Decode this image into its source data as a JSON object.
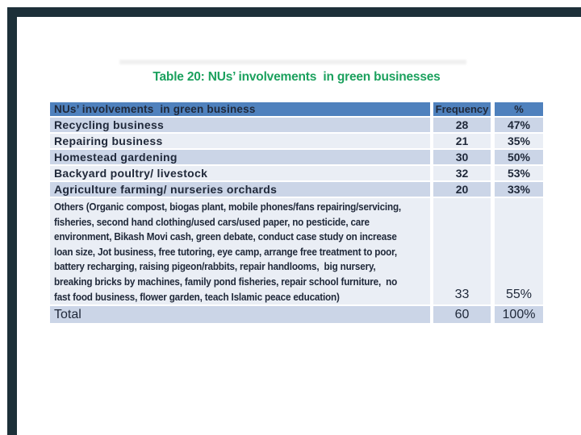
{
  "colors": {
    "frame_dark": "#1d3039",
    "title_green": "#1ca15e",
    "header_bg": "#4f81bd",
    "header_text": "#ffffff",
    "row_a": "#cbd5e7",
    "row_b": "#eaeef5",
    "text_dark": "#20293a"
  },
  "title": {
    "text": "Table 20: NUs’ involvements  in green businesses"
  },
  "table": {
    "header": {
      "col1": "NUs’ involvements  in green business",
      "col2": "Frequency",
      "col3": "%"
    },
    "rows": [
      {
        "label": "Recycling business",
        "frequency": "28",
        "percent": "47%",
        "shade": "a"
      },
      {
        "label": "Repairing business",
        "frequency": "21",
        "percent": "35%",
        "shade": "b"
      },
      {
        "label": "Homestead gardening",
        "frequency": "30",
        "percent": "50%",
        "shade": "a"
      },
      {
        "label": "Backyard poultry/ livestock",
        "frequency": "32",
        "percent": "53%",
        "shade": "b"
      },
      {
        "label": "Agriculture farming/ nurseries orchards",
        "frequency": "20",
        "percent": "33%",
        "shade": "a"
      },
      {
        "label": "Others (Organic compost, biogas plant, mobile phones/fans repairing/servicing,\nfisheries, second hand clothing/used cars/used paper, no pesticide, care\nenvironment, Bikash Movi cash, green debate, conduct case study on increase\nloan size, Jot business, free tutoring, eye camp, arrange free treatment to poor,\nbattery recharging, raising pigeon/rabbits, repair handlooms,  big nursery,\nbreaking bricks by machines, family pond fisheries, repair school furniture,  no\nfast food business, flower garden, teach Islamic peace education)",
        "frequency": "33",
        "percent": "55%",
        "shade": "b",
        "multiline": true
      },
      {
        "label": "Total",
        "frequency": "60",
        "percent": "100%",
        "shade": "a",
        "is_total": true
      }
    ]
  }
}
